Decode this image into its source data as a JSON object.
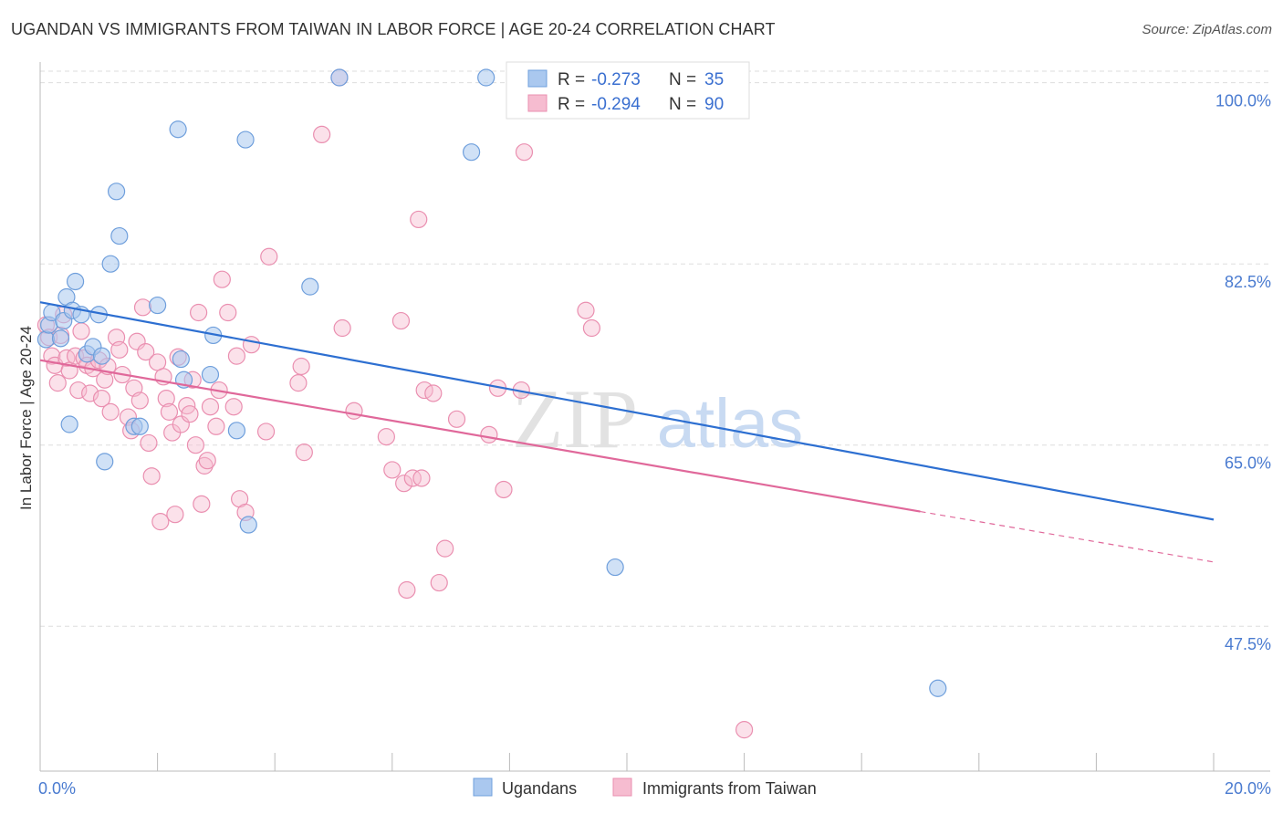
{
  "header": {
    "title": "UGANDAN VS IMMIGRANTS FROM TAIWAN IN LABOR FORCE | AGE 20-24 CORRELATION CHART",
    "source": "Source: ZipAtlas.com"
  },
  "watermark": {
    "zip": "ZIP",
    "atlas": "atlas"
  },
  "legend": {
    "rows": [
      {
        "r_label": "R =",
        "r_value": "-0.273",
        "n_label": "N =",
        "n_value": "35"
      },
      {
        "r_label": "R =",
        "r_value": "-0.294",
        "n_label": "N =",
        "n_value": "90"
      }
    ]
  },
  "colors": {
    "ugandans_fill": "#aac8ef",
    "ugandans_stroke": "#6f9fdc",
    "ugandans_line": "#2d6fd1",
    "taiwan_fill": "#f6bcd0",
    "taiwan_stroke": "#ea8fb0",
    "taiwan_line": "#e0689a",
    "grid": "#dddddd",
    "tick_text": "#4a7bd0"
  },
  "chart_data": {
    "type": "scatter",
    "title": "UGANDAN VS IMMIGRANTS FROM TAIWAN IN LABOR FORCE | AGE 20-24 CORRELATION CHART",
    "xlabel": "",
    "ylabel": "In Labor Force | Age 20-24",
    "xlim": [
      0,
      20
    ],
    "ylim": [
      33.5,
      102
    ],
    "x_tick_labels": [
      "0.0%",
      "20.0%"
    ],
    "y_ticks": [
      47.5,
      65.0,
      82.5,
      100.0
    ],
    "y_tick_labels": [
      "47.5%",
      "65.0%",
      "82.5%",
      "100.0%"
    ],
    "grid": true,
    "legend_position": "top-center",
    "series": [
      {
        "name": "Ugandans",
        "points": [
          [
            0.1,
            75.2
          ],
          [
            0.15,
            76.6
          ],
          [
            0.2,
            77.8
          ],
          [
            0.35,
            75.3
          ],
          [
            0.4,
            77.0
          ],
          [
            0.45,
            79.3
          ],
          [
            0.5,
            67.0
          ],
          [
            0.55,
            78.0
          ],
          [
            0.6,
            80.8
          ],
          [
            0.7,
            77.6
          ],
          [
            0.8,
            73.8
          ],
          [
            0.9,
            74.5
          ],
          [
            1.0,
            77.6
          ],
          [
            1.1,
            63.4
          ],
          [
            1.2,
            82.5
          ],
          [
            1.3,
            89.5
          ],
          [
            1.35,
            85.2
          ],
          [
            1.6,
            66.8
          ],
          [
            1.7,
            66.8
          ],
          [
            2.0,
            78.5
          ],
          [
            2.35,
            95.5
          ],
          [
            2.4,
            73.3
          ],
          [
            2.45,
            71.3
          ],
          [
            2.9,
            71.8
          ],
          [
            2.95,
            75.6
          ],
          [
            3.35,
            66.4
          ],
          [
            3.5,
            94.5
          ],
          [
            3.55,
            57.3
          ],
          [
            4.6,
            80.3
          ],
          [
            5.1,
            100.5
          ],
          [
            7.35,
            93.3
          ],
          [
            7.6,
            100.5
          ],
          [
            9.8,
            53.2
          ],
          [
            15.3,
            41.5
          ],
          [
            1.05,
            73.6
          ]
        ]
      },
      {
        "name": "Immigrants from Taiwan",
        "points": [
          [
            0.1,
            76.6
          ],
          [
            0.15,
            75.4
          ],
          [
            0.2,
            73.6
          ],
          [
            0.25,
            72.7
          ],
          [
            0.3,
            71.0
          ],
          [
            0.35,
            75.6
          ],
          [
            0.4,
            77.6
          ],
          [
            0.45,
            73.4
          ],
          [
            0.5,
            72.2
          ],
          [
            0.6,
            73.6
          ],
          [
            0.65,
            70.3
          ],
          [
            0.7,
            76.0
          ],
          [
            0.75,
            73.4
          ],
          [
            0.8,
            72.7
          ],
          [
            0.85,
            70.0
          ],
          [
            0.9,
            72.4
          ],
          [
            1.0,
            73.2
          ],
          [
            1.05,
            69.5
          ],
          [
            1.1,
            71.3
          ],
          [
            1.15,
            72.6
          ],
          [
            1.2,
            68.2
          ],
          [
            1.3,
            75.4
          ],
          [
            1.35,
            74.2
          ],
          [
            1.4,
            71.8
          ],
          [
            1.5,
            67.7
          ],
          [
            1.55,
            66.4
          ],
          [
            1.6,
            70.5
          ],
          [
            1.65,
            75.0
          ],
          [
            1.7,
            69.3
          ],
          [
            1.75,
            78.3
          ],
          [
            1.8,
            74.0
          ],
          [
            1.85,
            65.2
          ],
          [
            1.9,
            62.0
          ],
          [
            2.0,
            73.0
          ],
          [
            2.05,
            57.6
          ],
          [
            2.1,
            71.6
          ],
          [
            2.15,
            69.5
          ],
          [
            2.2,
            68.2
          ],
          [
            2.25,
            66.2
          ],
          [
            2.3,
            58.3
          ],
          [
            2.35,
            73.5
          ],
          [
            2.4,
            67.0
          ],
          [
            2.5,
            68.8
          ],
          [
            2.55,
            68.0
          ],
          [
            2.6,
            71.3
          ],
          [
            2.65,
            65.0
          ],
          [
            2.7,
            77.8
          ],
          [
            2.75,
            59.3
          ],
          [
            2.8,
            63.0
          ],
          [
            2.85,
            63.5
          ],
          [
            2.9,
            68.7
          ],
          [
            3.0,
            66.8
          ],
          [
            3.05,
            70.3
          ],
          [
            3.1,
            81.0
          ],
          [
            3.2,
            77.8
          ],
          [
            3.3,
            68.7
          ],
          [
            3.35,
            73.6
          ],
          [
            3.4,
            59.8
          ],
          [
            3.5,
            58.5
          ],
          [
            3.6,
            74.7
          ],
          [
            3.85,
            66.3
          ],
          [
            3.9,
            83.2
          ],
          [
            4.4,
            71.0
          ],
          [
            4.45,
            72.6
          ],
          [
            4.5,
            64.3
          ],
          [
            4.8,
            95.0
          ],
          [
            5.1,
            100.5
          ],
          [
            5.15,
            76.3
          ],
          [
            5.35,
            68.3
          ],
          [
            5.9,
            65.8
          ],
          [
            6.0,
            62.6
          ],
          [
            6.15,
            77.0
          ],
          [
            6.2,
            61.3
          ],
          [
            6.25,
            51.0
          ],
          [
            6.35,
            61.8
          ],
          [
            6.45,
            86.8
          ],
          [
            6.5,
            61.8
          ],
          [
            6.55,
            70.3
          ],
          [
            6.7,
            70.0
          ],
          [
            6.8,
            51.7
          ],
          [
            6.9,
            55.0
          ],
          [
            7.1,
            67.5
          ],
          [
            7.65,
            66.0
          ],
          [
            7.8,
            70.5
          ],
          [
            7.9,
            60.7
          ],
          [
            8.2,
            70.3
          ],
          [
            8.25,
            93.3
          ],
          [
            9.3,
            78.0
          ],
          [
            9.4,
            76.3
          ],
          [
            12.0,
            37.5
          ]
        ]
      }
    ],
    "trendlines": [
      {
        "series": "Ugandans",
        "x": [
          0,
          20
        ],
        "y": [
          78.8,
          57.8
        ],
        "dashed_from": null
      },
      {
        "series": "Immigrants from Taiwan",
        "x": [
          0,
          20
        ],
        "y": [
          73.2,
          53.7
        ],
        "dashed_from": 15.0
      }
    ]
  },
  "bottom_legend": {
    "items": [
      {
        "label": "Ugandans"
      },
      {
        "label": "Immigrants from Taiwan"
      }
    ]
  }
}
